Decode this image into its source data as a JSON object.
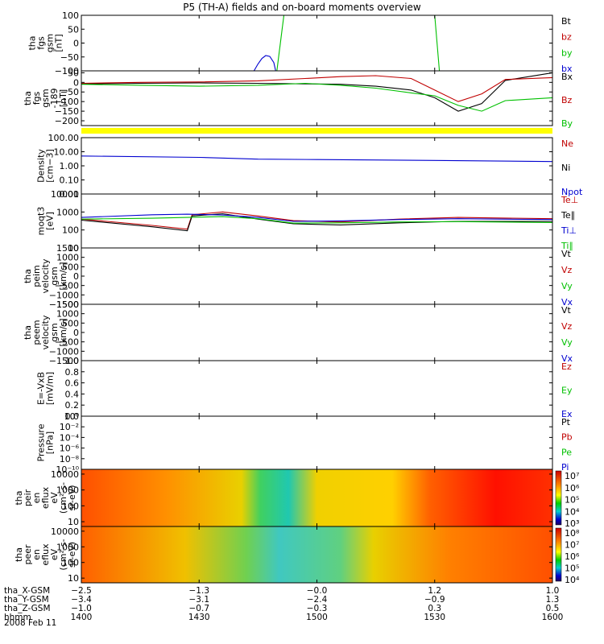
{
  "title": "P5 (TH-A) fields and on-board moments overview",
  "chart_data": [
    {
      "type": "line",
      "ylabel": [
        "tha",
        "fgs",
        "gsm",
        "[nT]"
      ],
      "ylim": [
        -100,
        100
      ],
      "ticks": [
        {
          "v": 100,
          "l": "100"
        },
        {
          "v": 50,
          "l": "50"
        },
        {
          "v": 0,
          "l": "0"
        },
        {
          "v": -50,
          "l": "−50"
        },
        {
          "v": -100,
          "l": "−100"
        }
      ],
      "legend": [
        {
          "name": "Bt",
          "color": "#000000"
        },
        {
          "name": "bz",
          "color": "#c00000"
        },
        {
          "name": "by",
          "color": "#00c000"
        },
        {
          "name": "bx",
          "color": "#0000d0"
        }
      ],
      "series": [
        {
          "name": "bx",
          "color": "#0000d0",
          "points": [
            [
              14.733,
              -100
            ],
            [
              14.75,
              -75
            ],
            [
              14.767,
              -55
            ],
            [
              14.783,
              -45
            ],
            [
              14.8,
              -48
            ],
            [
              14.817,
              -70
            ],
            [
              14.825,
              -100
            ]
          ]
        },
        {
          "name": "by",
          "color": "#00c000",
          "points": [
            [
              14.83,
              -100
            ],
            [
              14.86,
              100
            ]
          ]
        },
        {
          "name": "by",
          "color": "#00c000",
          "points": [
            [
              15.5,
              100
            ],
            [
              15.52,
              -100
            ]
          ]
        }
      ]
    },
    {
      "type": "line",
      "ylabel": [
        "tha",
        "fgs",
        "gsm",
        "-189",
        " [nT]"
      ],
      "ylim": [
        -225,
        60
      ],
      "ticks": [
        {
          "v": 50,
          "l": "50"
        },
        {
          "v": 0,
          "l": "0"
        },
        {
          "v": -50,
          "l": "−50"
        },
        {
          "v": -100,
          "l": "−100"
        },
        {
          "v": -150,
          "l": "−150"
        },
        {
          "v": -200,
          "l": "−200"
        }
      ],
      "legend": [
        {
          "name": "Bx",
          "color": "#000000"
        },
        {
          "name": "Bz",
          "color": "#c00000"
        },
        {
          "name": "By",
          "color": "#00c000"
        }
      ],
      "series": [
        {
          "name": "Bx",
          "color": "#000000",
          "points": [
            [
              14,
              -8
            ],
            [
              14.25,
              -5
            ],
            [
              14.5,
              -3
            ],
            [
              14.75,
              -5
            ],
            [
              14.95,
              -8
            ],
            [
              15.1,
              -10
            ],
            [
              15.25,
              -20
            ],
            [
              15.4,
              -40
            ],
            [
              15.5,
              -80
            ],
            [
              15.6,
              -150
            ],
            [
              15.7,
              -110
            ],
            [
              15.8,
              10
            ],
            [
              16,
              50
            ]
          ]
        },
        {
          "name": "Bz",
          "color": "#c00000",
          "points": [
            [
              14,
              -5
            ],
            [
              14.25,
              0
            ],
            [
              14.5,
              2
            ],
            [
              14.75,
              8
            ],
            [
              14.95,
              20
            ],
            [
              15.1,
              30
            ],
            [
              15.25,
              35
            ],
            [
              15.4,
              20
            ],
            [
              15.5,
              -40
            ],
            [
              15.6,
              -100
            ],
            [
              15.7,
              -60
            ],
            [
              15.8,
              15
            ],
            [
              16,
              25
            ]
          ]
        },
        {
          "name": "By",
          "color": "#00c000",
          "points": [
            [
              14,
              -10
            ],
            [
              14.25,
              -15
            ],
            [
              14.5,
              -20
            ],
            [
              14.75,
              -15
            ],
            [
              14.95,
              -5
            ],
            [
              15.1,
              -15
            ],
            [
              15.25,
              -30
            ],
            [
              15.4,
              -55
            ],
            [
              15.5,
              -70
            ],
            [
              15.6,
              -120
            ],
            [
              15.7,
              -150
            ],
            [
              15.8,
              -95
            ],
            [
              16,
              -80
            ]
          ]
        }
      ]
    },
    {
      "type": "line",
      "ylabel": [
        "Density",
        "[cm−3]"
      ],
      "log": true,
      "ylim": [
        0.01,
        100
      ],
      "ticks": [
        {
          "v": 100,
          "l": "100.00"
        },
        {
          "v": 10,
          "l": "10.00"
        },
        {
          "v": 1,
          "l": "1.00"
        },
        {
          "v": 0.1,
          "l": "0.10"
        },
        {
          "v": 0.01,
          "l": "0.01"
        }
      ],
      "legend": [
        {
          "name": "Ne",
          "color": "#c00000"
        },
        {
          "name": "Ni",
          "color": "#000000"
        },
        {
          "name": "Npot",
          "color": "#0000d0"
        }
      ],
      "series": [
        {
          "name": "Npot",
          "color": "#0000d0",
          "points": [
            [
              14,
              5
            ],
            [
              14.5,
              4
            ],
            [
              14.75,
              3
            ],
            [
              15,
              2.8
            ],
            [
              15.5,
              2.4
            ],
            [
              16,
              2
            ]
          ]
        }
      ]
    },
    {
      "type": "line",
      "ylabel": [
        "moqt3",
        "[eV]"
      ],
      "log": true,
      "ylim": [
        10,
        10000
      ],
      "ticks": [
        {
          "v": 10000,
          "l": "10000"
        },
        {
          "v": 1000,
          "l": "1000"
        },
        {
          "v": 100,
          "l": "100"
        },
        {
          "v": 10,
          "l": "10"
        }
      ],
      "legend": [
        {
          "name": "Te⊥",
          "color": "#c00000"
        },
        {
          "name": "Te∥",
          "color": "#000000"
        },
        {
          "name": "Ti⊥",
          "color": "#0000d0"
        },
        {
          "name": "Ti∥",
          "color": "#00c000"
        }
      ],
      "series": [
        {
          "name": "Te⊥",
          "color": "#c00000",
          "points": [
            [
              14,
              400
            ],
            [
              14.3,
              180
            ],
            [
              14.45,
              110
            ],
            [
              14.47,
              700
            ],
            [
              14.6,
              1000
            ],
            [
              14.75,
              600
            ],
            [
              14.9,
              330
            ],
            [
              15.1,
              280
            ],
            [
              15.35,
              400
            ],
            [
              15.6,
              500
            ],
            [
              16,
              420
            ]
          ]
        },
        {
          "name": "Te∥",
          "color": "#000000",
          "points": [
            [
              14,
              350
            ],
            [
              14.3,
              150
            ],
            [
              14.45,
              90
            ],
            [
              14.47,
              600
            ],
            [
              14.6,
              800
            ],
            [
              14.75,
              400
            ],
            [
              14.9,
              220
            ],
            [
              15.1,
              190
            ],
            [
              15.35,
              250
            ],
            [
              15.6,
              300
            ],
            [
              16,
              300
            ]
          ]
        },
        {
          "name": "Ti⊥",
          "color": "#0000d0",
          "points": [
            [
              14,
              500
            ],
            [
              14.3,
              700
            ],
            [
              14.45,
              750
            ],
            [
              14.6,
              680
            ],
            [
              14.75,
              500
            ],
            [
              14.9,
              300
            ],
            [
              15.1,
              320
            ],
            [
              15.35,
              380
            ],
            [
              15.6,
              420
            ],
            [
              16,
              380
            ]
          ]
        },
        {
          "name": "Ti∥",
          "color": "#00c000",
          "points": [
            [
              14,
              400
            ],
            [
              14.3,
              450
            ],
            [
              14.45,
              500
            ],
            [
              14.6,
              550
            ],
            [
              14.75,
              420
            ],
            [
              14.9,
              240
            ],
            [
              15.1,
              250
            ],
            [
              15.35,
              280
            ],
            [
              15.6,
              290
            ],
            [
              16,
              260
            ]
          ]
        }
      ]
    },
    {
      "type": "line",
      "ylabel": [
        "tha",
        "peim",
        "velocity",
        "gsm",
        "[km/s]"
      ],
      "ylim": [
        -1500,
        1500
      ],
      "ticks": [
        {
          "v": 1500,
          "l": "1500"
        },
        {
          "v": 1000,
          "l": "1000"
        },
        {
          "v": 500,
          "l": "500"
        },
        {
          "v": 0,
          "l": "0"
        },
        {
          "v": -500,
          "l": "−500"
        },
        {
          "v": -1000,
          "l": "−1000"
        },
        {
          "v": -1500,
          "l": "−1500"
        }
      ],
      "legend": [
        {
          "name": "Vt",
          "color": "#000000"
        },
        {
          "name": "Vz",
          "color": "#c00000"
        },
        {
          "name": "Vy",
          "color": "#00c000"
        },
        {
          "name": "Vx",
          "color": "#0000d0"
        }
      ],
      "series": []
    },
    {
      "type": "line",
      "ylabel": [
        "tha",
        "peem",
        "velocity",
        "gsm",
        "[km/s]"
      ],
      "ylim": [
        -1500,
        1500
      ],
      "ticks": [
        {
          "v": 1500,
          "l": "1500"
        },
        {
          "v": 1000,
          "l": "1000"
        },
        {
          "v": 500,
          "l": "500"
        },
        {
          "v": 0,
          "l": "0"
        },
        {
          "v": -500,
          "l": "−500"
        },
        {
          "v": -1000,
          "l": "−1000"
        },
        {
          "v": -1500,
          "l": "−1500"
        }
      ],
      "legend": [
        {
          "name": "Vt",
          "color": "#000000"
        },
        {
          "name": "Vz",
          "color": "#c00000"
        },
        {
          "name": "Vy",
          "color": "#00c000"
        },
        {
          "name": "Vx",
          "color": "#0000d0"
        }
      ],
      "series": []
    },
    {
      "type": "line",
      "ylabel": [
        "E=-VxB",
        "[mV/m]"
      ],
      "ylim": [
        0,
        1
      ],
      "ticks": [
        {
          "v": 1,
          "l": "1.0"
        },
        {
          "v": 0.8,
          "l": "0.8"
        },
        {
          "v": 0.6,
          "l": "0.6"
        },
        {
          "v": 0.4,
          "l": "0.4"
        },
        {
          "v": 0.2,
          "l": "0.2"
        },
        {
          "v": 0,
          "l": "0.0"
        }
      ],
      "legend": [
        {
          "name": "Ez",
          "color": "#c00000"
        },
        {
          "name": "Ey",
          "color": "#00c000"
        },
        {
          "name": "Ex",
          "color": "#0000d0"
        }
      ],
      "series": []
    },
    {
      "type": "line",
      "ylabel": [
        "Pressure",
        "[nPa]"
      ],
      "log": true,
      "ylim": [
        1e-10,
        1
      ],
      "ticks": [
        {
          "v": 1,
          "l": "10⁰"
        },
        {
          "v": 0.01,
          "l": "10⁻²"
        },
        {
          "v": 0.0001,
          "l": "10⁻⁴"
        },
        {
          "v": 1e-06,
          "l": "10⁻⁶"
        },
        {
          "v": 1e-08,
          "l": "10⁻⁸"
        },
        {
          "v": 1e-10,
          "l": "10⁻¹⁰"
        }
      ],
      "legend": [
        {
          "name": "Pt",
          "color": "#000000"
        },
        {
          "name": "Pb",
          "color": "#c00000"
        },
        {
          "name": "Pe",
          "color": "#00c000"
        },
        {
          "name": "Pi",
          "color": "#0000d0"
        }
      ],
      "series": []
    },
    {
      "type": "heatmap",
      "ylabel": [
        "tha",
        "peir",
        "en",
        "eflux",
        "eV",
        "(cm²-s-",
        "sr-eV)"
      ],
      "log": true,
      "ylim": [
        5,
        20000
      ],
      "ticks": [
        {
          "v": 10000,
          "l": "10000"
        },
        {
          "v": 1000,
          "l": "1000"
        },
        {
          "v": 100,
          "l": "100"
        },
        {
          "v": 10,
          "l": "10"
        }
      ],
      "colorbar_labels": [
        "10⁷",
        "10⁶",
        "10⁵",
        "10⁴",
        "10³"
      ]
    },
    {
      "type": "heatmap",
      "ylabel": [
        "tha",
        "peer",
        "en",
        "eflux",
        "eV",
        "(cm²-s-",
        "sr-eV)"
      ],
      "log": true,
      "ylim": [
        5,
        20000
      ],
      "ticks": [
        {
          "v": 10000,
          "l": "10000"
        },
        {
          "v": 1000,
          "l": "1000"
        },
        {
          "v": 100,
          "l": "100"
        },
        {
          "v": 10,
          "l": "10"
        }
      ],
      "colorbar_labels": [
        "10⁸",
        "10⁷",
        "10⁶",
        "10⁵",
        "10⁴"
      ]
    }
  ],
  "x_axis": {
    "range": [
      14,
      16
    ],
    "rows": [
      {
        "label": "tha_X-GSM",
        "values": [
          "−2.5",
          "−1.3",
          "−0.0",
          "1.2",
          "1.0"
        ]
      },
      {
        "label": "tha_Y-GSM",
        "values": [
          "−3.4",
          "−3.1",
          "−2.4",
          "−0.9",
          "1.3"
        ]
      },
      {
        "label": "tha_Z-GSM",
        "values": [
          "−1.0",
          "−0.7",
          "−0.3",
          "0.3",
          "0.5"
        ]
      },
      {
        "label": "hhmm",
        "values": [
          "1400",
          "1430",
          "1500",
          "1530",
          "1600"
        ]
      }
    ],
    "date": "2008 Feb 11"
  },
  "colors": {
    "axis": "#000000",
    "separator": "#ffff00"
  }
}
